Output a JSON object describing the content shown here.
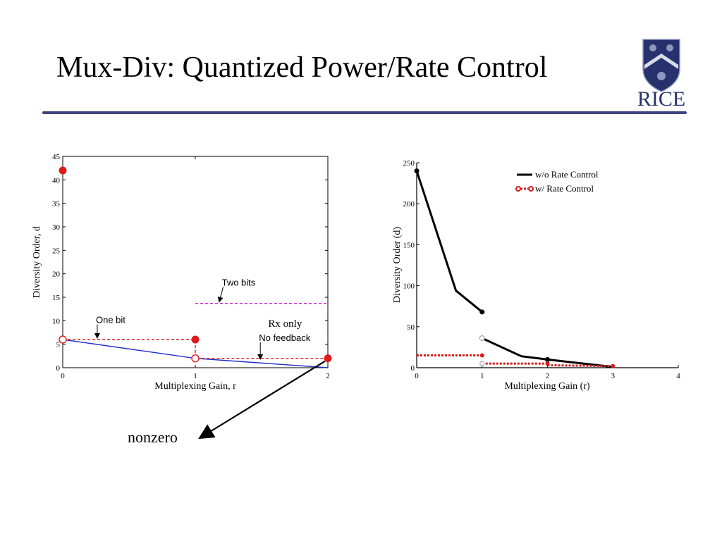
{
  "slide": {
    "title": "Mux-Div: Quantized Power/Rate Control",
    "logo_text": "RICE",
    "logo_color": "#27316e"
  },
  "chart_data": [
    {
      "type": "line",
      "xlabel": "Multiplexing Gain, r",
      "ylabel": "Diversity Order, d",
      "xlim": [
        0,
        2
      ],
      "ylim": [
        0,
        45
      ],
      "xticks": [
        0,
        1,
        2
      ],
      "yticks": [
        0,
        5,
        10,
        15,
        20,
        25,
        30,
        35,
        40,
        45
      ],
      "series": [
        {
          "role": "no-feedback",
          "color": "#1f2ec8",
          "style": "solid",
          "x": [
            0,
            1,
            2
          ],
          "y": [
            6,
            2,
            0
          ]
        },
        {
          "role": "one-bit",
          "color": "#d71e1e",
          "style": "dashed",
          "x": [
            0,
            1,
            1,
            1,
            2
          ],
          "y": [
            6,
            6,
            6,
            2,
            2
          ]
        },
        {
          "role": "two-bits",
          "color": "#d21ed2",
          "style": "dashed",
          "x": [
            1,
            2
          ],
          "y": [
            13.7,
            13.7
          ]
        }
      ],
      "filled_points": [
        {
          "x": 0,
          "y": 42
        },
        {
          "x": 1,
          "y": 6
        },
        {
          "x": 2,
          "y": 2
        }
      ],
      "open_points": [
        {
          "x": 0,
          "y": 6
        },
        {
          "x": 1,
          "y": 2
        }
      ],
      "annotations": [
        {
          "text": "One bit",
          "at": [
            0.25,
            9.5
          ],
          "arrow_to": [
            0.26,
            6.3
          ]
        },
        {
          "text": "Two bits",
          "at": [
            1.2,
            17.5
          ],
          "arrow_to": [
            1.18,
            14
          ]
        },
        {
          "text": "Rx only",
          "at": [
            1.55,
            8.7
          ]
        },
        {
          "text": "No feedback",
          "at": [
            1.48,
            5.7
          ],
          "arrow_to": [
            1.49,
            1.8
          ]
        }
      ],
      "callout": {
        "text": "nonzero",
        "arrow_from": [
          2,
          2
        ]
      }
    },
    {
      "type": "line",
      "xlabel": "Multiplexing Gain (r)",
      "ylabel": "Diversity Order (d)",
      "xlim": [
        0,
        4
      ],
      "ylim": [
        0,
        250
      ],
      "xticks": [
        0,
        1,
        2,
        3,
        4
      ],
      "yticks": [
        0,
        50,
        100,
        150,
        200,
        250
      ],
      "legend": {
        "placement": "top-right",
        "entries": [
          "w/o Rate Control",
          "w/ Rate Control"
        ]
      },
      "series": [
        {
          "name": "w/o Rate Control",
          "color": "#000000",
          "segments": [
            {
              "x": [
                0,
                0.6,
                1
              ],
              "y": [
                240,
                94,
                68
              ]
            },
            {
              "x": [
                1,
                1.6,
                2,
                3
              ],
              "y": [
                36,
                14,
                10,
                1
              ]
            }
          ]
        },
        {
          "name": "w/ Rate Control",
          "color": "#d71e1e",
          "segments": [
            {
              "x": [
                0,
                1
              ],
              "y": [
                15,
                15
              ]
            },
            {
              "x": [
                1,
                2
              ],
              "y": [
                5,
                5
              ]
            },
            {
              "x": [
                2,
                3
              ],
              "y": [
                3,
                2
              ]
            }
          ]
        }
      ]
    }
  ]
}
